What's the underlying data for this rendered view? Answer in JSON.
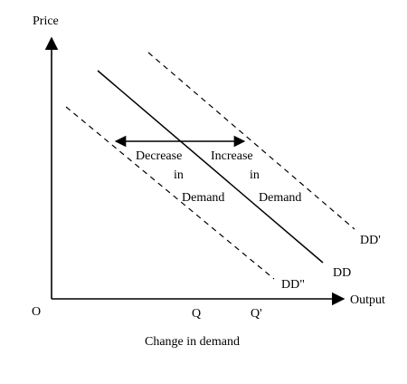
{
  "axes": {
    "y_label": "Price",
    "x_label": "Output",
    "origin_label": "O"
  },
  "ticks": {
    "q": "Q",
    "q_prime": "Q'"
  },
  "curves": {
    "original": "DD",
    "increase": "DD'",
    "decrease": "DD\""
  },
  "annotations": {
    "decrease": [
      "Decrease",
      "in",
      "Demand"
    ],
    "increase": [
      "Increase",
      "in",
      "Demand"
    ]
  },
  "caption": "Change in demand"
}
